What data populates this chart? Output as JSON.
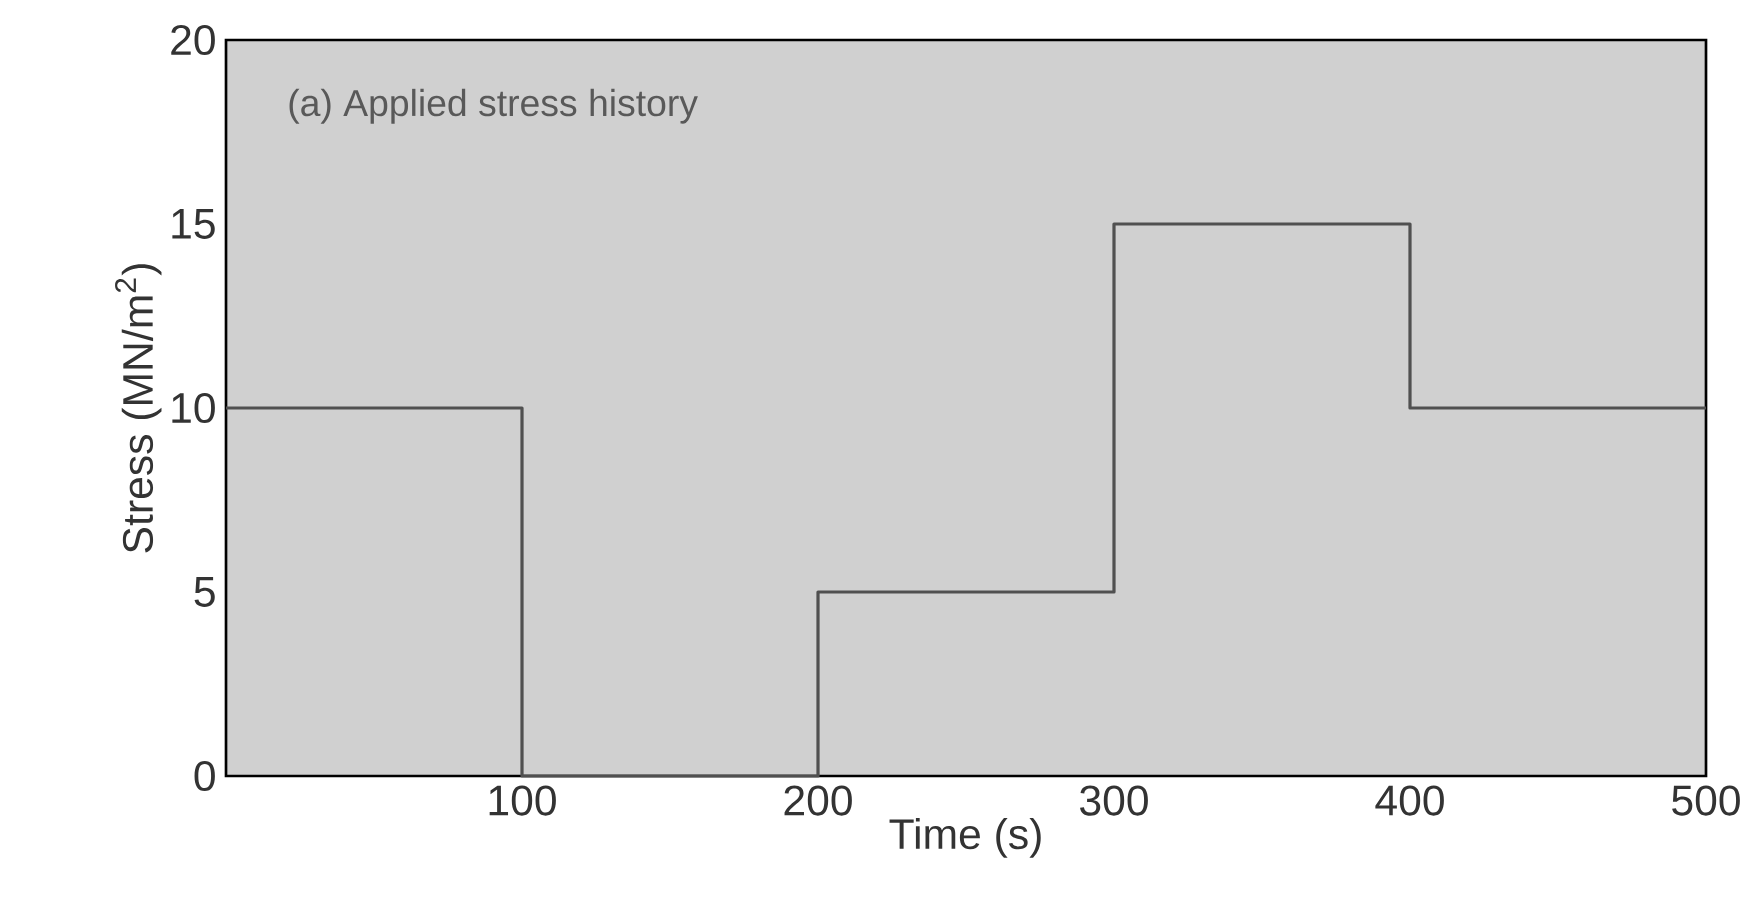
{
  "chart_data": {
    "type": "step",
    "xlabel": "Time (s)",
    "ylabel": "Stress (MN/m$^{2}$)",
    "annotations": [
      "(a) Applied stress history"
    ],
    "x": [
      0,
      100,
      200,
      300,
      400,
      500
    ],
    "series": [
      {
        "color": "#505050",
        "values": [
          10,
          0,
          5,
          15,
          10,
          10
        ]
      }
    ],
    "xlim": [
      0,
      500
    ],
    "xticks": [
      100,
      200,
      300,
      400,
      500
    ],
    "ylim": [
      0,
      20
    ],
    "yticks": [
      0,
      5,
      10,
      15,
      20
    ]
  }
}
